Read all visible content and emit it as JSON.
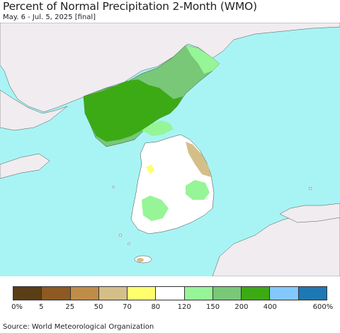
{
  "title": "Percent of Normal Precipitation 2-Month (WMO)",
  "subtitle": "May. 6 - Jul. 5, 2025 [final]",
  "source": "Source: World Meteorological Organization",
  "legend": {
    "colors": [
      "#5a3e16",
      "#8c5a22",
      "#c08c48",
      "#d4bf88",
      "#ffff6e",
      "#ffffff",
      "#96f596",
      "#78c878",
      "#3caa14",
      "#82c8ff",
      "#1e78b4"
    ],
    "ticks": [
      "0%",
      "5",
      "25",
      "50",
      "70",
      "80",
      "120",
      "150",
      "200",
      "400",
      "600%"
    ]
  },
  "map_colors": {
    "ocean": "#a8f4f4",
    "land_other": "#f0ecf0",
    "korea_base": "#ffffff",
    "dark_green": "#3caa14",
    "mid_green": "#78c878",
    "light_green": "#96f596",
    "tan": "#d4bf88",
    "yellow": "#ffff6e"
  }
}
